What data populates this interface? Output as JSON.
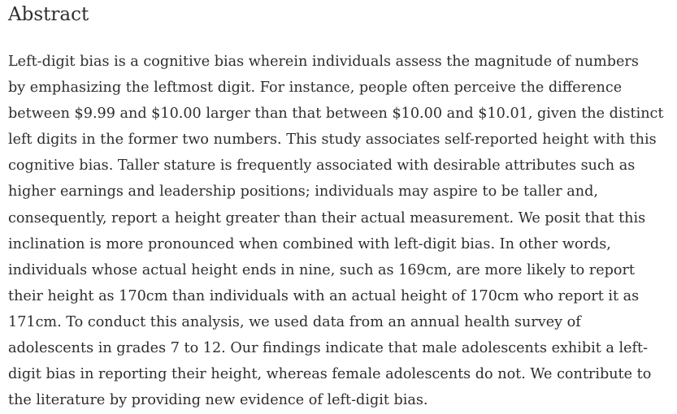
{
  "abstract": {
    "heading": "Abstract",
    "lines": [
      "Left-digit bias is a cognitive bias wherein individuals assess the magnitude of numbers",
      "by emphasizing the leftmost digit. For instance, people often perceive the difference",
      "between $9.99 and $10.00 larger than that between $10.00 and $10.01, given the distinct",
      "left digits in the former two numbers. This study associates self-reported height with this",
      "cognitive bias. Taller stature is frequently associated with desirable attributes such as",
      "higher earnings and leadership positions; individuals may aspire to be taller and,",
      "consequently, report a height greater than their actual measurement. We posit that this",
      "inclination is more pronounced when combined with left-digit bias. In other words,",
      "individuals whose actual height ends in nine, such as 169cm, are more likely to report",
      "their height as 170cm than individuals with an actual height of 170cm who report it as",
      "171cm. To conduct this analysis, we used data from an annual health survey of",
      "adolescents in grades 7 to 12. Our findings indicate that male adolescents exhibit a left-",
      "digit bias in reporting their height, whereas female adolescents do not. We contribute to",
      "the literature by providing new evidence of left-digit bias."
    ]
  }
}
